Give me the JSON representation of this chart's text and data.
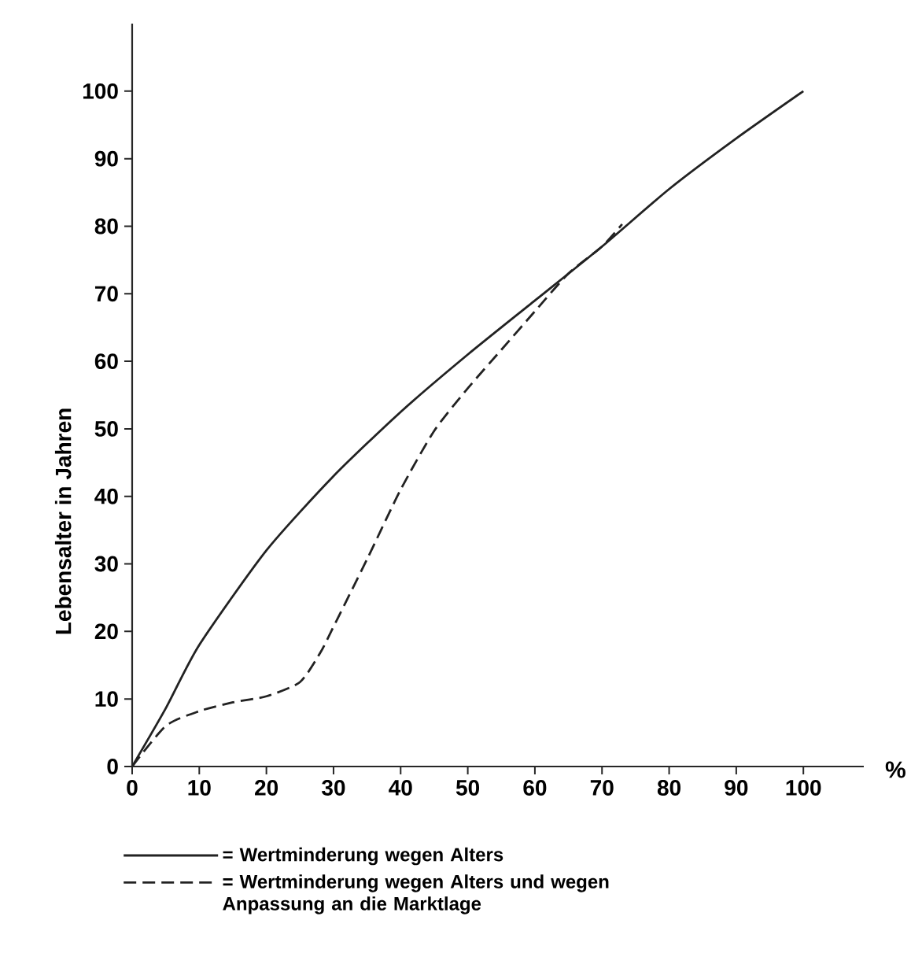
{
  "chart_data": {
    "type": "line",
    "xlabel": "%",
    "ylabel": "Lebensalter in Jahren",
    "xlim": [
      0,
      109
    ],
    "ylim": [
      0,
      110
    ],
    "xticks": [
      0,
      10,
      20,
      30,
      40,
      50,
      60,
      70,
      80,
      90,
      100
    ],
    "yticks": [
      0,
      10,
      20,
      30,
      40,
      50,
      60,
      70,
      80,
      90,
      100
    ],
    "legend": "bottom",
    "grid": false,
    "marker": "none",
    "series": [
      {
        "name": "= Wertminderung wegen Alters",
        "color": "#222222",
        "line_style": "solid",
        "x": [
          0,
          5,
          10,
          20,
          30,
          40,
          50,
          60,
          70,
          80,
          90,
          100
        ],
        "values": [
          0,
          8.6,
          18,
          32,
          43,
          52.5,
          61,
          69,
          77,
          85.5,
          93,
          100
        ]
      },
      {
        "name": "= Wertminderung wegen Alters und wegen Anpassung an die Marktlage",
        "color": "#222222",
        "line_style": "dashed",
        "x": [
          0,
          5,
          10,
          15,
          20,
          25,
          28,
          30,
          35,
          40,
          45,
          50,
          55,
          60,
          65,
          70,
          73
        ],
        "values": [
          0,
          6,
          8.2,
          9.5,
          10.4,
          12.5,
          16.8,
          20.7,
          30.7,
          41,
          49.7,
          56,
          61.7,
          67.4,
          73,
          77,
          80.3
        ]
      }
    ]
  }
}
